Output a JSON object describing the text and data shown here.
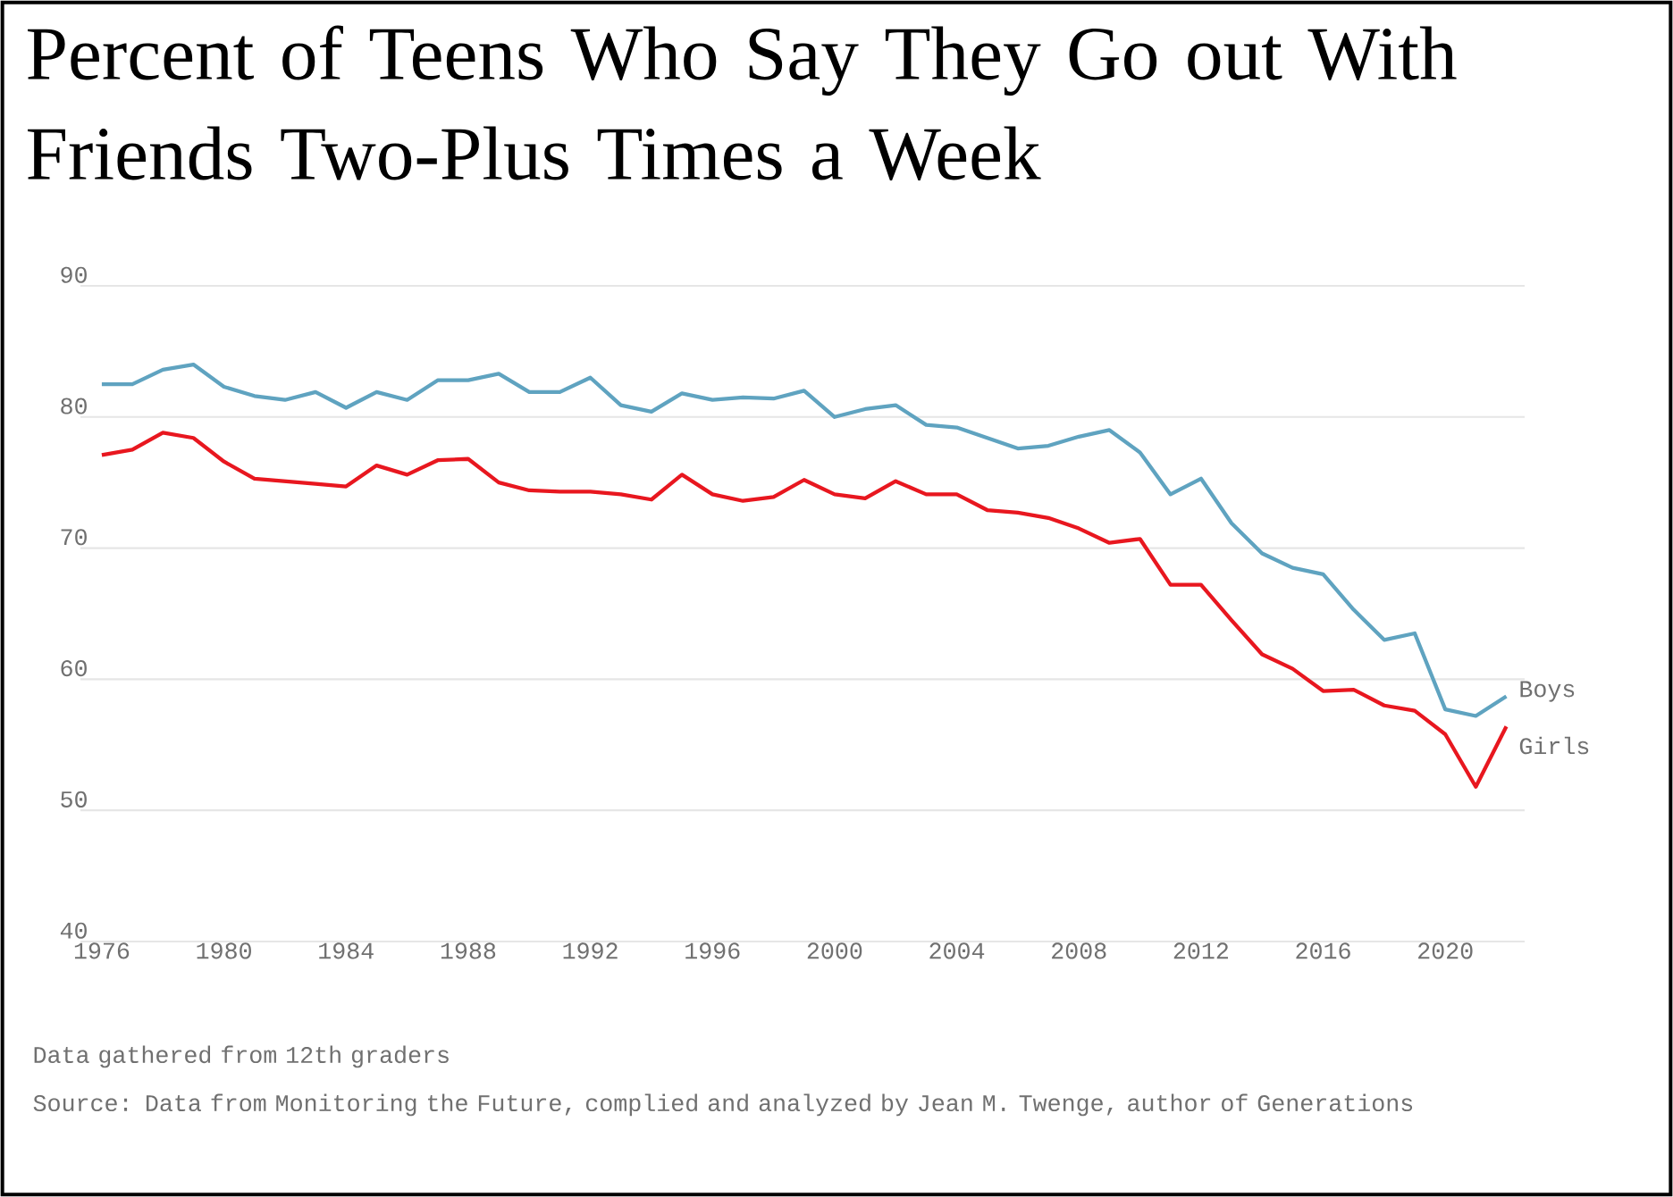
{
  "chart_data": {
    "type": "line",
    "title": "Percent of Teens Who Say They Go out With Friends Two-Plus Times a Week",
    "annotations": [
      "Data gathered from 12th graders",
      "Source: Data from Monitoring the Future, complied and analyzed by Jean M. Twenge, author of Generations"
    ],
    "x": [
      1976,
      1977,
      1978,
      1979,
      1980,
      1981,
      1982,
      1983,
      1984,
      1985,
      1986,
      1987,
      1988,
      1989,
      1990,
      1991,
      1992,
      1993,
      1994,
      1995,
      1996,
      1997,
      1998,
      1999,
      2000,
      2001,
      2002,
      2003,
      2004,
      2005,
      2006,
      2007,
      2008,
      2009,
      2010,
      2011,
      2012,
      2013,
      2014,
      2015,
      2016,
      2017,
      2018,
      2019,
      2020,
      2021,
      2022
    ],
    "series": [
      {
        "name": "Boys",
        "color": "#5fa3c0",
        "values": [
          82.5,
          82.5,
          83.6,
          84.0,
          82.3,
          81.6,
          81.3,
          81.9,
          80.7,
          81.9,
          81.3,
          82.8,
          82.8,
          83.3,
          81.9,
          81.9,
          83.0,
          80.9,
          80.4,
          81.8,
          81.3,
          81.5,
          81.4,
          82.0,
          80.0,
          80.6,
          80.9,
          79.4,
          79.2,
          78.4,
          77.6,
          77.8,
          78.5,
          79.0,
          77.3,
          74.1,
          75.3,
          71.9,
          69.6,
          68.5,
          68.0,
          65.3,
          63.0,
          63.5,
          57.7,
          57.2,
          58.7
        ]
      },
      {
        "name": "Girls",
        "color": "#e8171f",
        "values": [
          77.1,
          77.5,
          78.8,
          78.4,
          76.6,
          75.3,
          75.1,
          74.9,
          74.7,
          76.3,
          75.6,
          76.7,
          76.8,
          75.0,
          74.4,
          74.3,
          74.3,
          74.1,
          73.7,
          75.6,
          74.1,
          73.6,
          73.9,
          75.2,
          74.1,
          73.8,
          75.1,
          74.1,
          74.1,
          72.9,
          72.7,
          72.3,
          71.5,
          70.4,
          70.7,
          67.2,
          67.2,
          64.5,
          61.9,
          60.8,
          59.1,
          59.2,
          58.0,
          57.6,
          55.8,
          51.8,
          56.4
        ]
      }
    ],
    "xlim": [
      1975.3,
      2022.6
    ],
    "xticks": [
      1976,
      1980,
      1984,
      1988,
      1992,
      1996,
      2000,
      2004,
      2008,
      2012,
      2016,
      2020
    ],
    "ylim": [
      40,
      90
    ],
    "yticks": [
      40,
      50,
      60,
      70,
      80,
      90
    ],
    "grid": "y",
    "marker": "none"
  }
}
